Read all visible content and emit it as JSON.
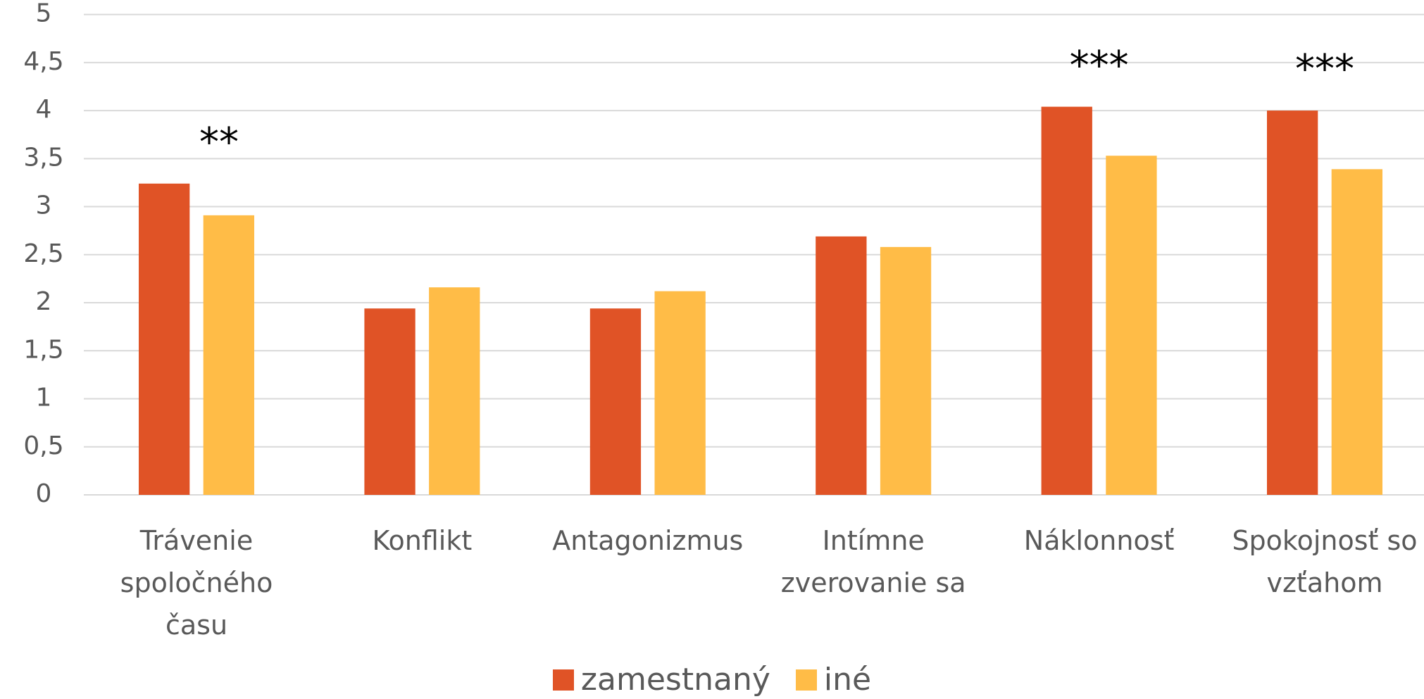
{
  "chart_data": {
    "type": "bar",
    "categories": [
      "Trávenie spoločného času",
      "Konflikt",
      "Antagonizmus",
      "Intímne zverovanie sa",
      "Náklonnosť",
      "Spokojnosť so vzťahom"
    ],
    "series": [
      {
        "name": "zamestnaný",
        "color": "#e05326",
        "values": [
          3.24,
          1.94,
          1.94,
          2.69,
          4.04,
          4.0
        ]
      },
      {
        "name": "iné",
        "color": "#ffbc47",
        "values": [
          2.91,
          2.16,
          2.12,
          2.58,
          3.53,
          3.39
        ]
      }
    ],
    "ylim": [
      0,
      5
    ],
    "yticks": [
      0,
      {
        "value": 0.5,
        "label": "0,5"
      },
      1,
      {
        "value": 1.5,
        "label": "1,5"
      },
      2,
      {
        "value": 2.5,
        "label": "2,5"
      },
      3,
      {
        "value": 3.5,
        "label": "3,5"
      },
      4,
      {
        "value": 4.5,
        "label": "4,5"
      },
      5
    ],
    "grid": true,
    "legend": "bottom",
    "annotations": [
      {
        "text": "**",
        "category": "Trávenie spoločného času"
      },
      {
        "text": "***",
        "category": "Náklonnosť"
      },
      {
        "text": "***",
        "category": "Spokojnosť so vzťahom"
      }
    ]
  }
}
